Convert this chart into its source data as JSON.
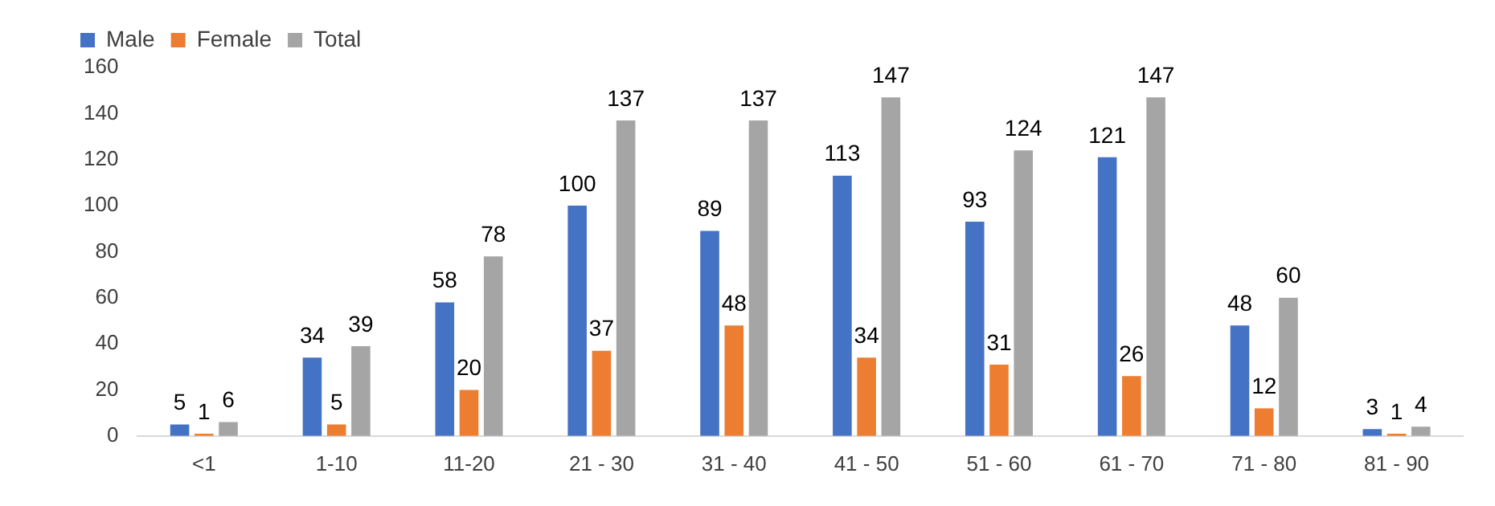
{
  "chart_data": {
    "type": "bar",
    "categories": [
      "<1",
      "1-10",
      "11-20",
      "21 - 30",
      "31 - 40",
      "41 - 50",
      "51 - 60",
      "61 - 70",
      "71 - 80",
      "81 - 90"
    ],
    "series": [
      {
        "name": "Male",
        "color": "#4472c4",
        "values": [
          5,
          34,
          58,
          100,
          89,
          113,
          93,
          121,
          48,
          3
        ]
      },
      {
        "name": "Female",
        "color": "#ed7d31",
        "values": [
          1,
          5,
          20,
          37,
          48,
          34,
          31,
          26,
          12,
          1
        ]
      },
      {
        "name": "Total",
        "color": "#a5a5a5",
        "values": [
          6,
          39,
          78,
          137,
          137,
          147,
          124,
          147,
          60,
          4
        ]
      }
    ],
    "ylim": [
      0,
      160
    ],
    "yticks": [
      0,
      20,
      40,
      60,
      80,
      100,
      120,
      140,
      160
    ],
    "grid": false,
    "legend": "top left",
    "data_labels": true
  }
}
